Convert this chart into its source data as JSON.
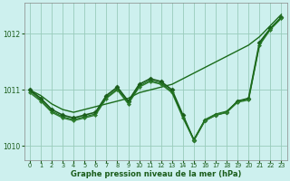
{
  "xlabel": "Graphe pression niveau de la mer (hPa)",
  "bg_color": "#cdf0ee",
  "grid_color": "#99ccbb",
  "dark_green": "#1a5c1a",
  "xlim": [
    -0.5,
    23.5
  ],
  "ylim": [
    1009.75,
    1012.55
  ],
  "yticks": [
    1010,
    1011,
    1012
  ],
  "xticks": [
    0,
    1,
    2,
    3,
    4,
    5,
    6,
    7,
    8,
    9,
    10,
    11,
    12,
    13,
    14,
    15,
    16,
    17,
    18,
    19,
    20,
    21,
    22,
    23
  ],
  "series": [
    {
      "x": [
        0,
        1,
        2,
        3,
        4,
        5,
        6,
        7,
        8,
        9,
        10,
        11,
        12,
        13,
        14,
        15,
        16,
        17,
        18,
        19,
        20,
        21,
        22,
        23
      ],
      "y": [
        1011.0,
        1010.9,
        1010.75,
        1010.65,
        1010.6,
        1010.65,
        1010.7,
        1010.75,
        1010.8,
        1010.85,
        1010.95,
        1011.0,
        1011.05,
        1011.1,
        1011.2,
        1011.3,
        1011.4,
        1011.5,
        1011.6,
        1011.7,
        1011.8,
        1011.95,
        1012.15,
        1012.35
      ],
      "color": "#1a6b1a",
      "lw": 1.0,
      "marker": null
    },
    {
      "x": [
        0,
        1,
        2,
        3,
        4,
        5,
        6,
        7,
        8,
        9,
        10,
        11,
        12,
        13,
        14,
        15,
        16,
        17,
        18,
        19,
        20,
        21,
        22,
        23
      ],
      "y": [
        1011.0,
        1010.85,
        1010.65,
        1010.55,
        1010.5,
        1010.55,
        1010.6,
        1010.9,
        1011.05,
        1010.8,
        1011.1,
        1011.2,
        1011.15,
        1011.0,
        1010.55,
        1010.1,
        1010.45,
        1010.55,
        1010.6,
        1010.8,
        1010.85,
        1011.85,
        1012.1,
        1012.3
      ],
      "color": "#1a5c1a",
      "lw": 1.2,
      "marker": "D",
      "ms": 2.5
    },
    {
      "x": [
        0,
        1,
        2,
        3,
        4,
        5,
        6,
        7,
        8,
        9,
        10,
        11,
        12,
        13,
        14,
        15,
        16,
        17,
        18,
        19,
        20,
        21,
        22,
        23
      ],
      "y": [
        1010.95,
        1010.8,
        1010.6,
        1010.5,
        1010.45,
        1010.5,
        1010.55,
        1010.85,
        1011.0,
        1010.75,
        1011.05,
        1011.15,
        1011.1,
        1010.95,
        1010.5,
        1010.1,
        1010.45,
        1010.55,
        1010.6,
        1010.78,
        1010.82,
        1011.8,
        1012.08,
        1012.28
      ],
      "color": "#2e7d2e",
      "lw": 1.0,
      "marker": "D",
      "ms": 2.0
    },
    {
      "x": [
        0,
        1,
        2,
        3,
        4,
        5,
        6,
        7,
        8,
        9,
        10,
        11,
        12,
        13,
        14,
        15,
        16,
        17,
        18,
        19,
        20,
        21,
        22,
        23
      ],
      "y": [
        1010.98,
        1010.82,
        1010.62,
        1010.52,
        1010.47,
        1010.52,
        1010.57,
        1010.87,
        1011.02,
        1010.77,
        1011.07,
        1011.17,
        1011.12,
        1010.97,
        1010.52,
        1010.12,
        1010.47,
        1010.57,
        1010.62,
        1010.8,
        1010.84,
        1011.82,
        1012.1,
        1012.3
      ],
      "color": "#1a6b1a",
      "lw": 0.8,
      "marker": null
    }
  ]
}
